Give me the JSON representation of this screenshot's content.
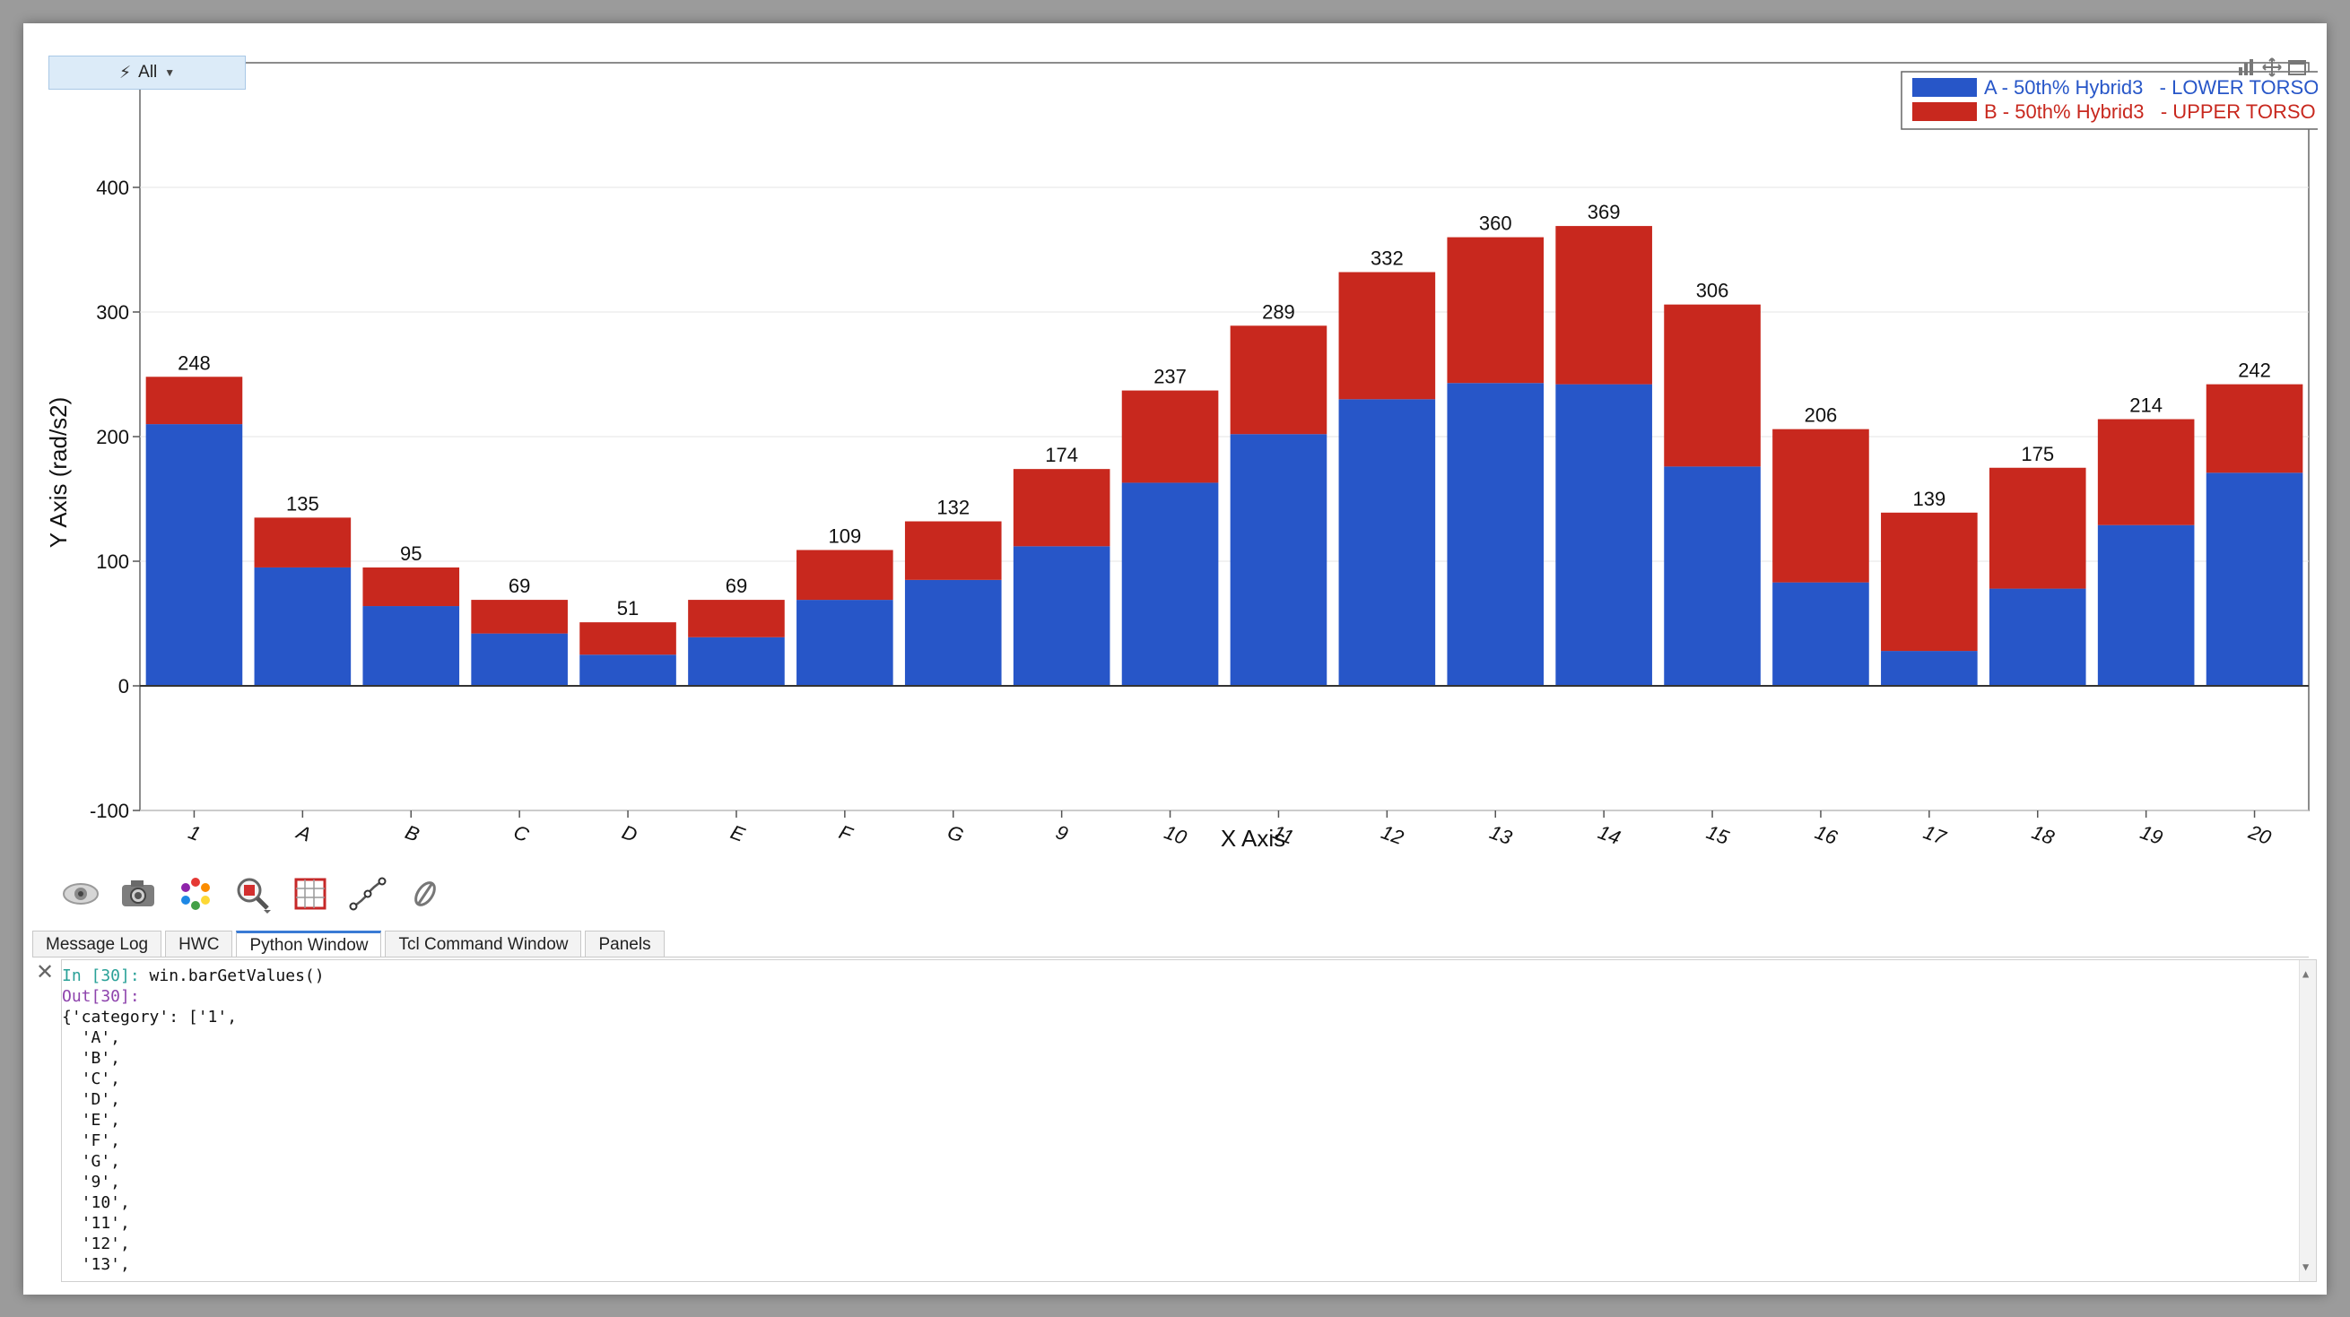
{
  "toolbar_top": {
    "filter_label": "All"
  },
  "chart_data": {
    "type": "bar",
    "stacked": true,
    "categories": [
      "1",
      "A",
      "B",
      "C",
      "D",
      "E",
      "F",
      "G",
      "9",
      "10",
      "11",
      "12",
      "13",
      "14",
      "15",
      "16",
      "17",
      "18",
      "19",
      "20"
    ],
    "series": [
      {
        "name": "A - 50th% Hybrid3   - LOWER TORSO",
        "color": "#2756c8",
        "values": [
          210,
          95,
          64,
          42,
          25,
          39,
          69,
          85,
          112,
          163,
          202,
          230,
          243,
          242,
          176,
          83,
          28,
          78,
          129,
          171
        ]
      },
      {
        "name": "B - 50th% Hybrid3   - UPPER TORSO",
        "color": "#c8281e",
        "values": [
          38,
          40,
          31,
          27,
          26,
          30,
          40,
          47,
          62,
          74,
          87,
          102,
          117,
          127,
          130,
          123,
          111,
          97,
          85,
          71
        ]
      }
    ],
    "totals": [
      "248",
      "135",
      "95",
      "69",
      "51",
      "69",
      "109",
      "132",
      "174",
      "237",
      "289",
      "332",
      "360",
      "369",
      "306",
      "206",
      "139",
      "175",
      "214",
      "242"
    ],
    "xlabel": "X Axis",
    "ylabel": "Y Axis (rad/s2)",
    "ylim": [
      -100,
      500
    ],
    "yticks": [
      "-100",
      "0",
      "100",
      "200",
      "300",
      "400"
    ],
    "grid": true,
    "legend_position": "top-right"
  },
  "tools": [
    "eye-icon",
    "camera-icon",
    "color-palette-icon",
    "zoom-icon",
    "grid-frame-icon",
    "curve-edit-icon",
    "link-icon"
  ],
  "tabs": [
    {
      "label": "Message Log",
      "active": false
    },
    {
      "label": "HWC",
      "active": false
    },
    {
      "label": "Python Window",
      "active": true
    },
    {
      "label": "Tcl Command Window",
      "active": false
    },
    {
      "label": "Panels",
      "active": false
    }
  ],
  "console": {
    "in_prompt": "In [30]:",
    "command": " win.barGetValues()",
    "out_prompt": "Out[30]:",
    "output_lines": [
      "{'category': ['1',",
      "  'A',",
      "  'B',",
      "  'C',",
      "  'D',",
      "  'E',",
      "  'F',",
      "  'G',",
      "  '9',",
      "  '10',",
      "  '11',",
      "  '12',",
      "  '13',"
    ]
  }
}
